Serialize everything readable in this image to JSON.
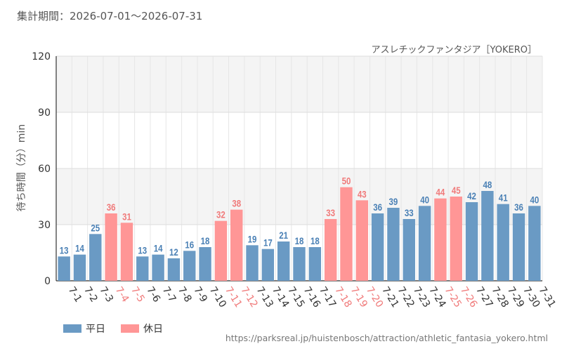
{
  "header": {
    "period_label": "集計期間：2026-07-01～2026-07-31",
    "attraction_label": "アスレチックファンタジア［YOKERO］"
  },
  "legend": {
    "weekday_label": "平日",
    "holiday_label": "休日"
  },
  "source_url": "https://parksreal.jp/huistenbosch/attraction/athletic_fantasia_yokero.html",
  "colors": {
    "weekday": "#6a9ac4",
    "holiday": "#ff9696",
    "weekday_text": "#4a80b5",
    "holiday_text": "#f07a7a"
  },
  "chart_data": {
    "type": "bar",
    "title": "",
    "xlabel": "",
    "ylabel": "待ち時間（分）min",
    "ylim": [
      0,
      120
    ],
    "yticks": [
      0,
      30,
      60,
      90,
      120
    ],
    "grid": true,
    "legend_position": "bottom-left",
    "categories": [
      "7-1",
      "7-2",
      "7-3",
      "7-4",
      "7-5",
      "7-6",
      "7-7",
      "7-8",
      "7-9",
      "7-10",
      "7-11",
      "7-12",
      "7-13",
      "7-14",
      "7-15",
      "7-16",
      "7-17",
      "7-18",
      "7-19",
      "7-20",
      "7-21",
      "7-22",
      "7-23",
      "7-24",
      "7-25",
      "7-26",
      "7-27",
      "7-28",
      "7-29",
      "7-30",
      "7-31"
    ],
    "values": [
      13,
      14,
      25,
      36,
      31,
      13,
      14,
      12,
      16,
      18,
      32,
      38,
      19,
      17,
      21,
      18,
      18,
      33,
      50,
      43,
      36,
      39,
      33,
      40,
      44,
      45,
      42,
      48,
      41,
      36,
      40
    ],
    "day_type": [
      "平日",
      "平日",
      "平日",
      "休日",
      "休日",
      "平日",
      "平日",
      "平日",
      "平日",
      "平日",
      "休日",
      "休日",
      "平日",
      "平日",
      "平日",
      "平日",
      "平日",
      "休日",
      "休日",
      "休日",
      "平日",
      "平日",
      "平日",
      "平日",
      "休日",
      "休日",
      "平日",
      "平日",
      "平日",
      "平日",
      "平日"
    ]
  }
}
